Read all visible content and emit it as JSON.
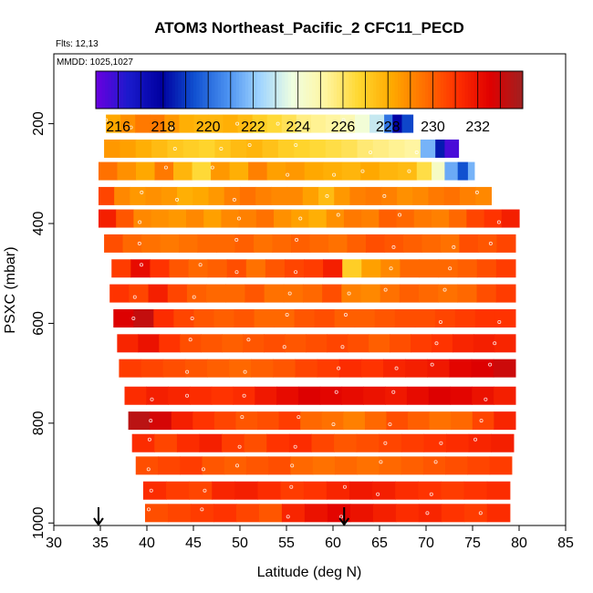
{
  "chart_data": {
    "type": "heatmap",
    "title": "ATOM3 Northeast_Pacific_2 CFC11_PECD",
    "flights_label": "Flts: 12,13",
    "dates_label": "MMDD: 1025,1027",
    "xlabel": "Latitude (deg N)",
    "ylabel": "PSXC (mbar)",
    "xlim": [
      30,
      85
    ],
    "ylim": [
      1005,
      60
    ],
    "x_ticks": [
      30,
      35,
      40,
      45,
      50,
      55,
      60,
      65,
      70,
      75,
      80,
      85
    ],
    "y_ticks": [
      200,
      400,
      600,
      800,
      1000
    ],
    "colorbar": {
      "range": [
        215,
        234
      ],
      "tick_values": [
        216,
        218,
        220,
        222,
        224,
        226,
        228,
        230,
        232
      ],
      "colors": [
        "#6a00e0",
        "#1a1acc",
        "#0000a0",
        "#1050d0",
        "#4a90f0",
        "#a0d4ff",
        "#f0ffe0",
        "#fff5a0",
        "#ffd730",
        "#ffaa00",
        "#ff7000",
        "#ff3000",
        "#e00000",
        "#a02020"
      ]
    },
    "arrows_at_latitude": [
      34.8,
      61.2
    ],
    "layers": [
      {
        "p": 200,
        "lat_start": 35.6,
        "lat_end": 65.5,
        "values": [
          228.2,
          228.8,
          229.4,
          229.4,
          228.6,
          228.0,
          227.8,
          227.8,
          228.0,
          227.6,
          227.0,
          226.6,
          226.2,
          225.6,
          225.4,
          225.2,
          224.8,
          224.0,
          223.0
        ],
        "tail": [
          [
            65.5,
            66.4,
            220.2
          ],
          [
            66.4,
            67.4,
            217.8
          ],
          [
            67.4,
            68.6,
            219.2
          ]
        ]
      },
      {
        "p": 250,
        "lat_start": 35.4,
        "lat_end": 69.4,
        "values": [
          228.6,
          228.4,
          228.0,
          227.6,
          227.2,
          227.0,
          226.8,
          227.2,
          227.6,
          227.8,
          227.4,
          227.0,
          226.8,
          226.6,
          226.4,
          226.2,
          225.8,
          225.6,
          225.4,
          225.2
        ],
        "tail": [
          [
            69.4,
            71.0,
            221.6
          ],
          [
            71.0,
            72.0,
            218.4
          ],
          [
            72.0,
            73.5,
            215.6
          ]
        ]
      },
      {
        "p": 295,
        "lat_start": 34.8,
        "lat_end": 69.0,
        "values": [
          229.6,
          228.8,
          228.2,
          229.4,
          227.8,
          226.6,
          228.6,
          228.0,
          229.2,
          228.4,
          228.6,
          228.2,
          228.0,
          227.8,
          228.2,
          227.8,
          227.6
        ],
        "tail": [
          [
            69.0,
            70.6,
            226.4
          ],
          [
            70.6,
            72.0,
            224.4
          ],
          [
            72.0,
            73.4,
            221.4
          ],
          [
            73.4,
            74.5,
            219.4
          ],
          [
            74.5,
            75.2,
            221.6
          ]
        ]
      },
      {
        "p": 345,
        "lat_start": 34.8,
        "lat_end": 77.0,
        "values": [
          230.6,
          229.0,
          228.6,
          228.8,
          228.6,
          228.0,
          228.2,
          228.6,
          229.2,
          229.6,
          229.2,
          229.0,
          229.0,
          228.4,
          227.6,
          228.6,
          229.2,
          229.4,
          229.2,
          228.8,
          229.0,
          229.4,
          229.6,
          229.2,
          229.0
        ]
      },
      {
        "p": 390,
        "lat_start": 34.8,
        "lat_end": 80.0,
        "values": [
          231.6,
          230.2,
          229.0,
          228.8,
          228.6,
          229.0,
          228.4,
          229.0,
          229.2,
          229.6,
          228.8,
          228.4,
          228.0,
          228.8,
          229.4,
          229.2,
          230.0,
          229.8,
          229.4,
          229.2,
          229.8,
          230.6,
          231.0,
          231.6
        ]
      },
      {
        "p": 440,
        "lat_start": 35.4,
        "lat_end": 79.6,
        "values": [
          230.4,
          229.8,
          229.6,
          229.4,
          229.6,
          229.8,
          229.8,
          230.0,
          229.6,
          229.8,
          230.0,
          229.8,
          229.6,
          230.0,
          230.4,
          230.2,
          230.0,
          229.8,
          229.6,
          230.4,
          230.2,
          230.6
        ]
      },
      {
        "p": 490,
        "lat_start": 36.2,
        "lat_end": 79.6,
        "values": [
          230.8,
          232.2,
          231.0,
          230.2,
          229.8,
          230.0,
          230.4,
          229.6,
          230.2,
          230.6,
          230.8,
          231.6,
          227.0,
          228.4,
          229.0,
          229.8,
          229.8,
          229.8,
          230.0,
          230.4,
          230.8
        ]
      },
      {
        "p": 540,
        "lat_start": 36.0,
        "lat_end": 79.6,
        "values": [
          231.0,
          230.6,
          231.6,
          230.6,
          230.0,
          229.8,
          229.8,
          230.2,
          229.6,
          229.6,
          229.8,
          230.4,
          229.2,
          229.0,
          229.6,
          230.0,
          229.8,
          229.6,
          229.8,
          230.4,
          230.8
        ]
      },
      {
        "p": 590,
        "lat_start": 36.4,
        "lat_end": 79.6,
        "values": [
          232.6,
          233.2,
          231.2,
          230.6,
          230.2,
          230.0,
          230.2,
          229.8,
          229.8,
          230.2,
          230.4,
          230.0,
          230.0,
          230.2,
          230.4,
          230.4,
          230.6,
          230.8,
          231.0,
          231.0
        ]
      },
      {
        "p": 640,
        "lat_start": 36.8,
        "lat_end": 79.6,
        "values": [
          231.4,
          232.0,
          231.0,
          230.4,
          230.2,
          230.0,
          230.2,
          230.4,
          230.2,
          230.4,
          230.6,
          230.4,
          230.0,
          230.4,
          230.8,
          231.0,
          231.4,
          231.6,
          231.4
        ]
      },
      {
        "p": 690,
        "lat_start": 37.0,
        "lat_end": 79.6,
        "values": [
          230.8,
          230.6,
          230.4,
          230.2,
          230.0,
          229.8,
          230.0,
          230.2,
          230.6,
          230.8,
          231.2,
          231.0,
          231.4,
          231.6,
          231.8,
          232.4,
          232.6,
          233.0
        ]
      },
      {
        "p": 745,
        "lat_start": 37.6,
        "lat_end": 79.6,
        "values": [
          231.2,
          231.6,
          231.4,
          231.2,
          231.0,
          231.2,
          231.8,
          232.2,
          232.6,
          232.4,
          232.2,
          232.0,
          231.8,
          232.2,
          232.6,
          232.4,
          232.0,
          231.6
        ]
      },
      {
        "p": 795,
        "lat_start": 38.0,
        "lat_end": 79.6,
        "values": [
          233.4,
          232.8,
          231.6,
          231.0,
          230.6,
          230.2,
          230.4,
          230.8,
          229.8,
          229.6,
          229.2,
          229.8,
          230.4,
          230.0,
          229.6,
          229.8,
          230.6,
          231.4
        ]
      },
      {
        "p": 840,
        "lat_start": 38.4,
        "lat_end": 79.4,
        "values": [
          231.2,
          230.6,
          231.2,
          231.6,
          230.8,
          230.4,
          231.0,
          231.2,
          230.6,
          230.2,
          230.4,
          230.6,
          230.8,
          231.0,
          231.2,
          231.4,
          231.6
        ]
      },
      {
        "p": 885,
        "lat_start": 38.8,
        "lat_end": 79.2,
        "values": [
          230.4,
          230.6,
          230.8,
          230.2,
          230.0,
          230.2,
          230.4,
          229.8,
          229.6,
          229.8,
          229.6,
          229.8,
          230.0,
          230.2,
          230.4,
          230.6,
          230.8
        ]
      },
      {
        "p": 935,
        "lat_start": 39.6,
        "lat_end": 79.0,
        "values": [
          231.2,
          230.8,
          230.6,
          231.4,
          231.6,
          231.2,
          230.8,
          231.0,
          231.4,
          231.8,
          231.6,
          231.2,
          231.0,
          230.8,
          231.0,
          231.2
        ]
      },
      {
        "p": 980,
        "lat_start": 39.8,
        "lat_end": 79.0,
        "values": [
          230.4,
          230.6,
          230.8,
          231.0,
          230.6,
          230.2,
          231.4,
          232.0,
          232.4,
          232.0,
          231.6,
          231.2,
          231.4,
          231.0,
          230.8,
          231.2
        ]
      }
    ]
  }
}
